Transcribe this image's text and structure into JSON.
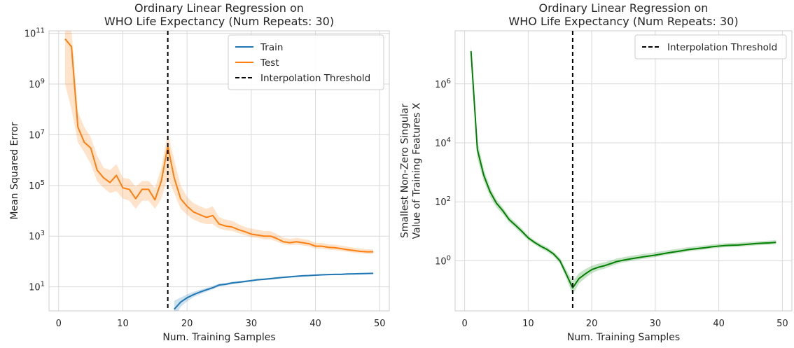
{
  "chart_data": [
    {
      "type": "line",
      "title": "Ordinary Linear Regression on\nWHO Life Expectancy (Num Repeats: 30)",
      "xlabel": "Num. Training Samples",
      "ylabel": "Mean Squared Error",
      "yscale": "log",
      "xlim": [
        -1.5,
        51.5
      ],
      "ylim_log10": [
        0.05,
        11.1
      ],
      "xticks": [
        0,
        10,
        20,
        30,
        40,
        50
      ],
      "yticks_log10": [
        1,
        3,
        5,
        7,
        9,
        11
      ],
      "grid": true,
      "legend_position": "top-right",
      "legend": [
        "Train",
        "Test",
        "Interpolation Threshold"
      ],
      "threshold_x": 17,
      "series": [
        {
          "name": "Train",
          "color": "#1f77b4",
          "x": [
            18,
            19,
            20,
            21,
            22,
            23,
            24,
            25,
            26,
            27,
            28,
            29,
            30,
            31,
            32,
            33,
            34,
            35,
            36,
            37,
            38,
            39,
            40,
            41,
            42,
            43,
            44,
            45,
            46,
            47,
            48,
            49
          ],
          "y": [
            1.3,
            2.5,
            3.7,
            4.9,
            6.2,
            7.6,
            9.2,
            11.8,
            12.6,
            14.2,
            15.1,
            16.2,
            17.5,
            19.0,
            19.8,
            21.0,
            22.3,
            23.5,
            24.8,
            26.0,
            27.2,
            27.8,
            28.8,
            29.8,
            30.3,
            30.8,
            31.0,
            32.2,
            32.5,
            33.0,
            33.5,
            34.0
          ],
          "low": [
            0.6,
            1.6,
            2.7,
            3.9,
            5.1,
            6.4,
            7.9,
            10.3,
            11.2,
            12.7,
            13.6,
            14.7,
            15.9,
            17.3,
            18.1,
            19.2,
            20.5,
            21.7,
            22.9,
            24.1,
            25.2,
            25.8,
            26.8,
            27.8,
            28.2,
            28.7,
            28.9,
            30.1,
            30.4,
            30.8,
            31.3,
            31.7
          ],
          "high": [
            2.8,
            3.8,
            5.0,
            6.3,
            7.6,
            9.0,
            10.8,
            13.4,
            14.2,
            15.9,
            16.8,
            17.9,
            19.2,
            20.9,
            21.7,
            22.9,
            24.3,
            25.5,
            26.9,
            28.1,
            29.3,
            30.0,
            31.0,
            32.0,
            32.5,
            33.0,
            33.2,
            34.4,
            34.8,
            35.2,
            35.7,
            36.3
          ]
        },
        {
          "name": "Test",
          "color": "#ff7f0e",
          "x": [
            1,
            2,
            3,
            4,
            5,
            6,
            7,
            8,
            9,
            10,
            11,
            12,
            13,
            14,
            15,
            16,
            17,
            18,
            19,
            20,
            21,
            22,
            23,
            24,
            25,
            26,
            27,
            28,
            29,
            30,
            31,
            32,
            33,
            34,
            35,
            36,
            37,
            38,
            39,
            40,
            41,
            42,
            43,
            44,
            45,
            46,
            47,
            48,
            49
          ],
          "y": [
            60000000000.0,
            30000000000.0,
            20000000.0,
            5000000.0,
            3000000.0,
            400000.0,
            200000.0,
            130000.0,
            250000.0,
            80000.0,
            70000.0,
            30000.0,
            70000.0,
            70000.0,
            27000.0,
            150000.0,
            3500000.0,
            200000.0,
            30000.0,
            15000.0,
            9000.0,
            7000.0,
            5500.0,
            6500.0,
            3000.0,
            2500.0,
            2300.0,
            1800.0,
            1500.0,
            1200.0,
            1100.0,
            1000.0,
            1000.0,
            800.0,
            600.0,
            550.0,
            600.0,
            550.0,
            500.0,
            400.0,
            400.0,
            360.0,
            350.0,
            320.0,
            290.0,
            270.0,
            250.0,
            240.0,
            240.0
          ],
          "low": [
            1000000000.0,
            100000000.0,
            5000000.0,
            2000000.0,
            700000.0,
            150000.0,
            80000.0,
            50000.0,
            60000.0,
            30000.0,
            25000.0,
            12000.0,
            25000.0,
            25000.0,
            12000.0,
            30000.0,
            200000.0,
            50000.0,
            12000.0,
            7000.0,
            4500.0,
            3500.0,
            3000.0,
            3000.0,
            2000.0,
            1700.0,
            1600.0,
            1300.0,
            1100.0,
            900.0,
            850.0,
            750.0,
            750.0,
            600.0,
            480.0,
            440.0,
            460.0,
            430.0,
            390.0,
            320.0,
            320.0,
            290.0,
            280.0,
            260.0,
            240.0,
            220.0,
            210.0,
            200.0,
            200.0
          ],
          "high": [
            130000000000.0,
            120000000000.0,
            80000000.0,
            20000000.0,
            8000000.0,
            1500000.0,
            500000.0,
            400000.0,
            700000.0,
            200000.0,
            180000.0,
            90000.0,
            150000.0,
            150000.0,
            80000.0,
            500000.0,
            12000000.0,
            1000000.0,
            100000.0,
            35000.0,
            20000.0,
            15000.0,
            12000.0,
            15000.0,
            5500.0,
            4500.0,
            4000.0,
            3000.0,
            2300.0,
            2000.0,
            1800.0,
            1600.0,
            1600.0,
            1200.0,
            850.0,
            780.0,
            850.0,
            780.0,
            700.0,
            540.0,
            540.0,
            480.0,
            460.0,
            420.0,
            380.0,
            350.0,
            320.0,
            300.0,
            300.0
          ]
        }
      ]
    },
    {
      "type": "line",
      "title": "Ordinary Linear Regression on\nWHO Life Expectancy (Num Repeats: 30)",
      "xlabel": "Num. Training Samples",
      "ylabel": "Smallest Non-Zero Singular\nValue of Training Features X",
      "yscale": "log",
      "xlim": [
        -1.5,
        51.5
      ],
      "ylim_log10": [
        -1.7,
        7.8
      ],
      "xticks": [
        0,
        10,
        20,
        30,
        40,
        50
      ],
      "yticks_log10": [
        0,
        2,
        4,
        6
      ],
      "grid": true,
      "legend_position": "top-right",
      "legend": [
        "Interpolation Threshold"
      ],
      "threshold_x": 17,
      "series": [
        {
          "name": "",
          "color": "#008000",
          "x": [
            1,
            2,
            3,
            4,
            5,
            6,
            7,
            8,
            9,
            10,
            11,
            12,
            13,
            14,
            15,
            16,
            17,
            18,
            19,
            20,
            21,
            22,
            23,
            24,
            25,
            26,
            27,
            28,
            29,
            30,
            31,
            32,
            33,
            34,
            35,
            36,
            37,
            38,
            39,
            40,
            41,
            42,
            43,
            44,
            45,
            46,
            47,
            48,
            49
          ],
          "y": [
            13000000.0,
            6000.0,
            800.0,
            220.0,
            90.0,
            50.0,
            25.0,
            16.0,
            10.0,
            6.0,
            4.2,
            3.1,
            2.4,
            1.7,
            1.0,
            0.35,
            0.12,
            0.25,
            0.36,
            0.5,
            0.6,
            0.68,
            0.8,
            0.95,
            1.05,
            1.15,
            1.25,
            1.35,
            1.45,
            1.55,
            1.7,
            1.85,
            2.0,
            2.15,
            2.35,
            2.5,
            2.65,
            2.8,
            3.0,
            3.15,
            3.3,
            3.35,
            3.4,
            3.55,
            3.7,
            3.85,
            3.95,
            4.05,
            4.2
          ],
          "low": [
            8000000.0,
            3000.0,
            500.0,
            150.0,
            65.0,
            38.0,
            20.0,
            13.0,
            8.0,
            5.0,
            3.6,
            2.6,
            2.0,
            1.4,
            0.8,
            0.25,
            0.07,
            0.17,
            0.26,
            0.38,
            0.47,
            0.54,
            0.65,
            0.78,
            0.88,
            0.97,
            1.06,
            1.15,
            1.24,
            1.33,
            1.46,
            1.6,
            1.73,
            1.86,
            2.04,
            2.17,
            2.3,
            2.43,
            2.61,
            2.74,
            2.87,
            2.91,
            2.95,
            3.08,
            3.21,
            3.34,
            3.43,
            3.51,
            3.64
          ],
          "high": [
            20000000.0,
            12000.0,
            1300.0,
            320.0,
            120.0,
            65.0,
            32.0,
            20.0,
            12.5,
            7.2,
            5.0,
            3.7,
            2.9,
            2.0,
            1.25,
            0.5,
            0.2,
            0.38,
            0.52,
            0.68,
            0.8,
            0.89,
            1.03,
            1.21,
            1.33,
            1.45,
            1.57,
            1.69,
            1.81,
            1.93,
            2.11,
            2.28,
            2.46,
            2.63,
            2.86,
            3.03,
            3.2,
            3.37,
            3.6,
            3.77,
            3.94,
            4.0,
            4.06,
            4.23,
            4.4,
            4.58,
            4.7,
            4.82,
            5.0
          ]
        }
      ]
    }
  ]
}
